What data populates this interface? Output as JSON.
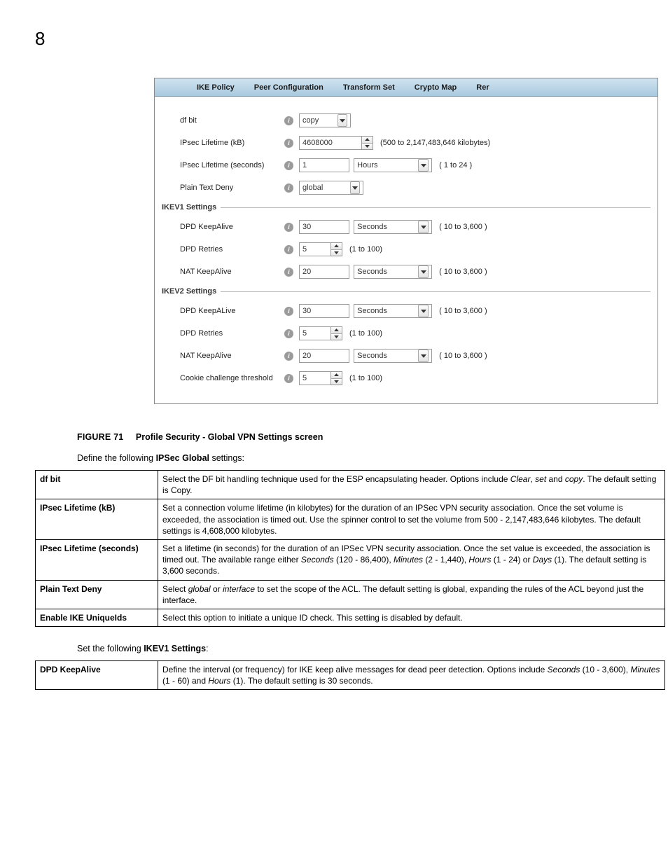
{
  "page_number": "8",
  "ui": {
    "tabs": [
      "IKE Policy",
      "Peer Configuration",
      "Transform Set",
      "Crypto Map",
      "Rer"
    ],
    "rows_top": [
      {
        "label": "df bit",
        "kind": "select",
        "value": "copy",
        "select_w": 54
      },
      {
        "label": "IPsec Lifetime (kB)",
        "kind": "spin",
        "value": "4608000",
        "spin_w": 90,
        "hint": "(500 to 2,147,483,646 kilobytes)"
      },
      {
        "label": "IPsec Lifetime (seconds)",
        "kind": "text_select",
        "value": "1",
        "text_w": 72,
        "select_value": "Hours",
        "select_w": 92,
        "hint": "( 1 to 24 )"
      },
      {
        "label": "Plain Text Deny",
        "kind": "select",
        "value": "global",
        "select_w": 72
      }
    ],
    "section1_title": "IKEV1 Settings",
    "rows_v1": [
      {
        "label": "DPD KeepAlive",
        "kind": "text_select",
        "value": "30",
        "text_w": 72,
        "select_value": "Seconds",
        "select_w": 92,
        "hint": "( 10 to 3,600 )"
      },
      {
        "label": "DPD Retries",
        "kind": "spin",
        "value": "5",
        "spin_w": 46,
        "hint": "(1 to 100)"
      },
      {
        "label": "NAT KeepAlive",
        "kind": "text_select",
        "value": "20",
        "text_w": 72,
        "select_value": "Seconds",
        "select_w": 92,
        "hint": "( 10 to 3,600 )"
      }
    ],
    "section2_title": "IKEV2 Settings",
    "rows_v2": [
      {
        "label": "DPD KeepALive",
        "kind": "text_select",
        "value": "30",
        "text_w": 72,
        "select_value": "Seconds",
        "select_w": 92,
        "hint": "( 10 to 3,600 )"
      },
      {
        "label": "DPD Retries",
        "kind": "spin",
        "value": "5",
        "spin_w": 46,
        "hint": "(1 to 100)"
      },
      {
        "label": "NAT KeepAlive",
        "kind": "text_select",
        "value": "20",
        "text_w": 72,
        "select_value": "Seconds",
        "select_w": 92,
        "hint": "( 10 to 3,600 )"
      },
      {
        "label": "Cookie challenge threshold",
        "kind": "spin",
        "value": "5",
        "spin_w": 46,
        "hint": "(1 to 100)"
      }
    ]
  },
  "figure": {
    "num": "FIGURE 71",
    "title": "Profile Security - Global VPN Settings screen"
  },
  "intro_ipsec": {
    "pre": "Define the following ",
    "bold": "IPSec Global",
    "post": " settings:"
  },
  "table_ipsec": [
    {
      "term": "df bit",
      "desc_html": "Select the DF bit handling technique used for the ESP encapsulating header. Options include <span class=\"ital\">Clear</span>, <span class=\"ital\">set</span> and <span class=\"ital\">copy</span>. The default setting is Copy."
    },
    {
      "term": "IPsec Lifetime (kB)",
      "desc_html": "Set a connection volume lifetime (in kilobytes) for the duration of an IPSec VPN security association. Once the set volume is exceeded, the association is timed out. Use the spinner control to set the volume from 500 - 2,147,483,646 kilobytes. The default settings is 4,608,000 kilobytes."
    },
    {
      "term": "IPsec Lifetime (seconds)",
      "desc_html": "Set a lifetime (in seconds) for the duration of an IPSec VPN security association. Once the set value is exceeded, the association is timed out. The available range either <span class=\"ital\">Seconds</span> (120 - 86,400), <span class=\"ital\">Minutes</span> (2 - 1,440), <span class=\"ital\">Hours</span> (1 - 24) or <span class=\"ital\">Days</span> (1). The default setting is 3,600 seconds."
    },
    {
      "term": "Plain Text Deny",
      "desc_html": "Select <span class=\"ital\">global</span> or <span class=\"ital\">interface</span> to set the scope of the ACL. The default setting is global, expanding the rules of the ACL beyond just the interface."
    },
    {
      "term": "Enable IKE UniqueIds",
      "desc_html": "Select this option to initiate a unique ID check. This setting is disabled by default."
    }
  ],
  "intro_ikev1": {
    "pre": "Set the following ",
    "bold": "IKEV1 Settings",
    "post": ":"
  },
  "table_ikev1": [
    {
      "term": "DPD KeepAlive",
      "desc_html": "Define the interval (or frequency) for IKE keep alive messages for dead peer detection. Options include <span class=\"ital\">Seconds</span> (10 - 3,600), <span class=\"ital\">Minutes</span> (1 - 60) and <span class=\"ital\">Hours</span> (1). The default setting is 30 seconds."
    }
  ]
}
